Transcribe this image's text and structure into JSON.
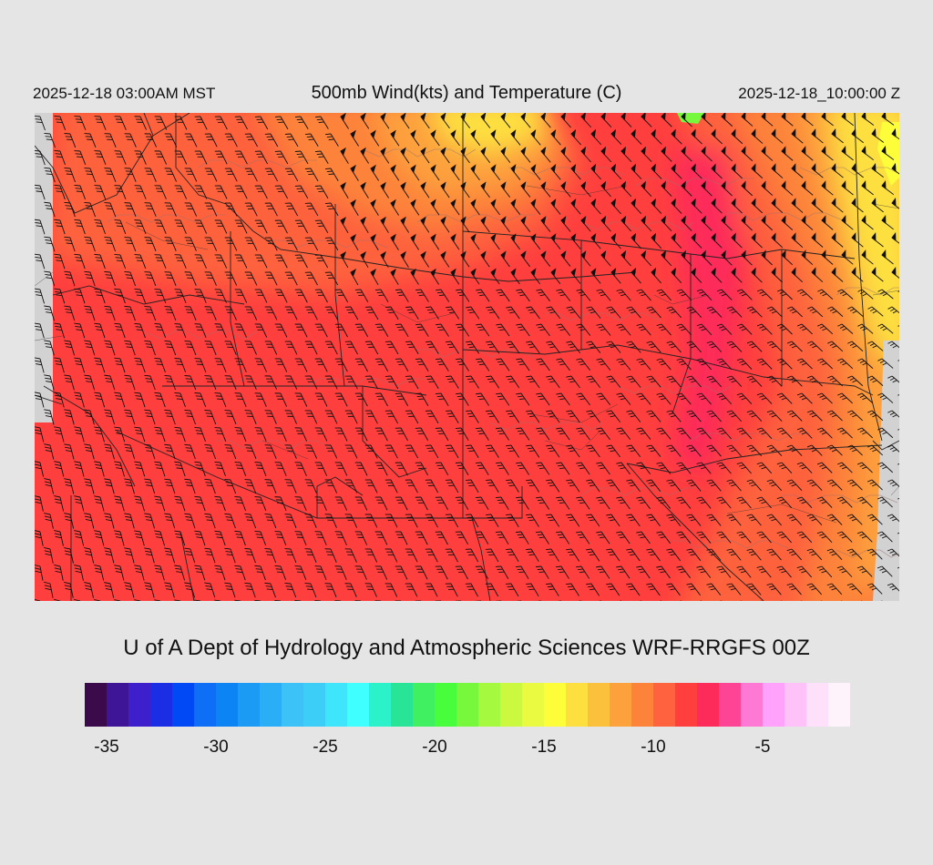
{
  "header": {
    "title": "500mb Wind(kts) and Temperature (C)",
    "local_time": "2025-12-18 03:00AM MST",
    "valid_time": "2025-12-18_10:00:00 Z"
  },
  "footer": {
    "credit": "U of A Dept of Hydrology and Atmospheric Sciences WRF-RRGFS 00Z"
  },
  "colorbar": {
    "colors": [
      "#3a0a4a",
      "#3f1597",
      "#3e1fcc",
      "#1b2ee4",
      "#0049f5",
      "#0e6ef5",
      "#0d84f4",
      "#1c9bf4",
      "#2aaef5",
      "#3cc2f6",
      "#3dcef7",
      "#3ee5fb",
      "#3fffff",
      "#2bf2c8",
      "#27e496",
      "#40f060",
      "#47fd3c",
      "#78f83c",
      "#a5f93f",
      "#cbf940",
      "#e9fa40",
      "#fefd3a",
      "#fde040",
      "#fbc03c",
      "#fda13d",
      "#fd833a",
      "#fe623e",
      "#ff3f3e",
      "#fd2b5a",
      "#fe4494",
      "#fe79d4",
      "#fea2fb",
      "#fec2f8",
      "#fee0fb",
      "#fef2fb"
    ],
    "ticks": [
      {
        "label": "-35",
        "index": 1
      },
      {
        "label": "-30",
        "index": 6
      },
      {
        "label": "-25",
        "index": 11
      },
      {
        "label": "-20",
        "index": 16
      },
      {
        "label": "-15",
        "index": 21
      },
      {
        "label": "-10",
        "index": 26
      },
      {
        "label": "-5",
        "index": 31
      }
    ]
  },
  "map": {
    "fill_colors": {
      "base": "#ff3f3e",
      "warm": "#fe623e",
      "mid": "#fd833a",
      "cool": "#fda13d",
      "cooler": "#fbc03c",
      "cold": "#fde040",
      "colder": "#fefd3a",
      "coldest": "#78f83c",
      "core": "#fd2b5a",
      "nodata": "#d2d2d2"
    }
  }
}
